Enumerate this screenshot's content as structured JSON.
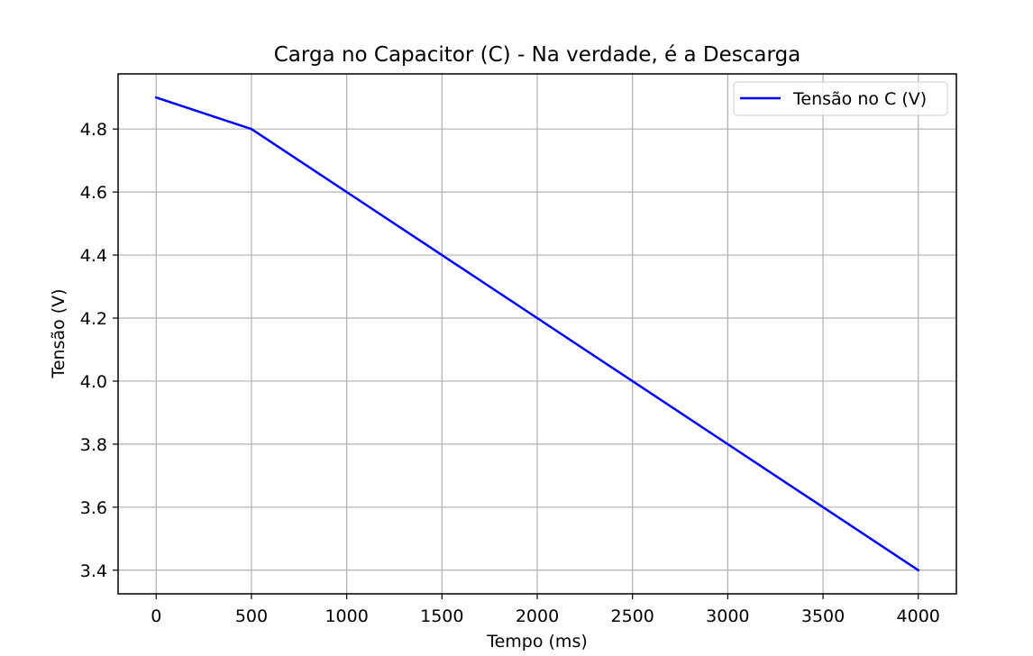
{
  "chart_data": {
    "type": "line",
    "title": "Carga no Capacitor (C) - Na verdade, é a Descarga",
    "xlabel": "Tempo (ms)",
    "ylabel": "Tensão (V)",
    "xlim": [
      -200,
      4200
    ],
    "ylim": [
      3.325,
      4.975
    ],
    "xticks": [
      0,
      500,
      1000,
      1500,
      2000,
      2500,
      3000,
      3500,
      4000
    ],
    "xtick_labels": [
      "0",
      "500",
      "1000",
      "1500",
      "2000",
      "2500",
      "3000",
      "3500",
      "4000"
    ],
    "yticks": [
      3.4,
      3.6,
      3.8,
      4.0,
      4.2,
      4.4,
      4.6,
      4.8
    ],
    "ytick_labels": [
      "3.4",
      "3.6",
      "3.8",
      "4.0",
      "4.2",
      "4.4",
      "4.6",
      "4.8"
    ],
    "grid": true,
    "legend_position": "upper right",
    "series": [
      {
        "name": "Tensão no C (V)",
        "color": "#0000ff",
        "x": [
          0,
          500,
          1000,
          1500,
          2000,
          2500,
          3000,
          3500,
          4000
        ],
        "y": [
          4.9,
          4.8,
          4.6,
          4.4,
          4.2,
          4.0,
          3.8,
          3.6,
          3.4
        ]
      }
    ]
  }
}
